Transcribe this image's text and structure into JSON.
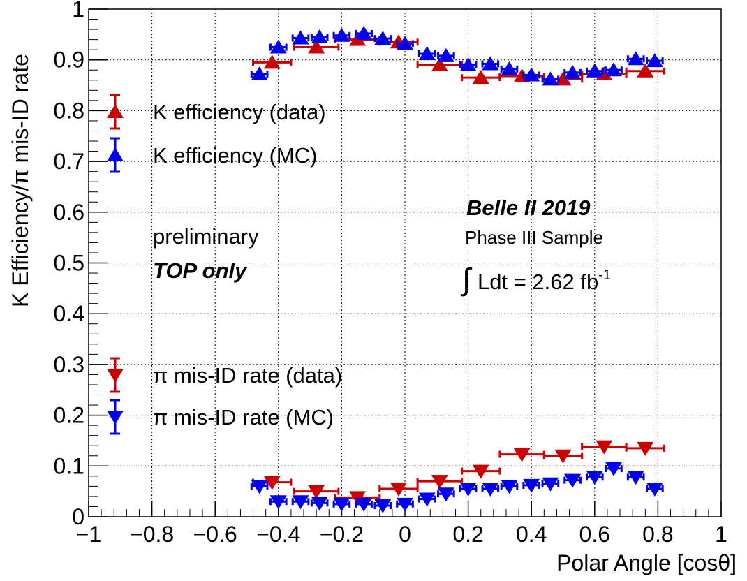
{
  "chart_data": {
    "type": "scatter",
    "xlabel": "Polar Angle [cosθ]",
    "ylabel": "K Efficiency/π mis-ID rate",
    "xlim": [
      -1,
      1
    ],
    "ylim": [
      0,
      1
    ],
    "x_ticks": [
      -1,
      -0.8,
      -0.6,
      -0.4,
      -0.2,
      0,
      0.2,
      0.4,
      0.6,
      0.8,
      1
    ],
    "x_tick_labels": [
      "−1",
      "−0.8",
      "−0.6",
      "−0.4",
      "−0.2",
      "0",
      "0.2",
      "0.4",
      "0.6",
      "0.8",
      "1"
    ],
    "y_ticks": [
      0,
      0.1,
      0.2,
      0.3,
      0.4,
      0.5,
      0.6,
      0.7,
      0.8,
      0.9,
      1
    ],
    "y_tick_labels": [
      "0",
      "0.1",
      "0.2",
      "0.3",
      "0.4",
      "0.5",
      "0.6",
      "0.7",
      "0.8",
      "0.9",
      "1"
    ],
    "grid": true,
    "legend_position": "left",
    "series": [
      {
        "name": "K efficiency (data)",
        "marker": "triangle-up",
        "color": "#cc0000",
        "x": [
          -0.42,
          -0.28,
          -0.15,
          -0.02,
          0.11,
          0.24,
          0.37,
          0.5,
          0.63,
          0.76
        ],
        "xerr": [
          0.06,
          0.07,
          0.07,
          0.06,
          0.07,
          0.06,
          0.07,
          0.06,
          0.07,
          0.06
        ],
        "y": [
          0.895,
          0.925,
          0.94,
          0.935,
          0.89,
          0.865,
          0.868,
          0.862,
          0.872,
          0.878
        ]
      },
      {
        "name": "K efficiency (MC)",
        "marker": "triangle-up",
        "color": "#0000ee",
        "x": [
          -0.46,
          -0.4,
          -0.33,
          -0.27,
          -0.2,
          -0.13,
          -0.07,
          0.0,
          0.07,
          0.13,
          0.2,
          0.27,
          0.33,
          0.4,
          0.46,
          0.53,
          0.6,
          0.66,
          0.73,
          0.79
        ],
        "xerr": [
          0.025,
          0.025,
          0.025,
          0.025,
          0.025,
          0.025,
          0.025,
          0.025,
          0.025,
          0.025,
          0.025,
          0.025,
          0.025,
          0.025,
          0.025,
          0.025,
          0.025,
          0.025,
          0.025,
          0.025
        ],
        "y": [
          0.872,
          0.925,
          0.943,
          0.945,
          0.948,
          0.952,
          0.942,
          0.932,
          0.912,
          0.908,
          0.89,
          0.892,
          0.882,
          0.87,
          0.862,
          0.875,
          0.878,
          0.88,
          0.902,
          0.898
        ]
      },
      {
        "name": "π mis-ID rate (data)",
        "marker": "triangle-down",
        "color": "#cc0000",
        "x": [
          -0.42,
          -0.28,
          -0.15,
          -0.02,
          0.11,
          0.24,
          0.37,
          0.5,
          0.63,
          0.76
        ],
        "xerr": [
          0.06,
          0.07,
          0.07,
          0.06,
          0.07,
          0.06,
          0.07,
          0.06,
          0.07,
          0.06
        ],
        "y": [
          0.068,
          0.05,
          0.038,
          0.055,
          0.07,
          0.09,
          0.123,
          0.12,
          0.138,
          0.135
        ]
      },
      {
        "name": "π mis-ID rate (MC)",
        "marker": "triangle-down",
        "color": "#0000ee",
        "x": [
          -0.46,
          -0.4,
          -0.33,
          -0.27,
          -0.2,
          -0.13,
          -0.07,
          0.0,
          0.07,
          0.13,
          0.2,
          0.27,
          0.33,
          0.4,
          0.46,
          0.53,
          0.6,
          0.66,
          0.73,
          0.79
        ],
        "xerr": [
          0.025,
          0.025,
          0.025,
          0.025,
          0.025,
          0.025,
          0.025,
          0.025,
          0.025,
          0.025,
          0.025,
          0.025,
          0.025,
          0.025,
          0.025,
          0.025,
          0.025,
          0.025,
          0.025,
          0.025
        ],
        "y": [
          0.06,
          0.03,
          0.03,
          0.027,
          0.025,
          0.025,
          0.022,
          0.025,
          0.035,
          0.045,
          0.055,
          0.055,
          0.06,
          0.062,
          0.065,
          0.072,
          0.078,
          0.095,
          0.078,
          0.055
        ]
      }
    ],
    "annotations": {
      "experiment": "Belle II 2019",
      "sample": "Phase III Sample",
      "lumi_prefix": "Ldt = 2.62 fb",
      "lumi_sup": "-1",
      "integral_sign": "∫",
      "status": "preliminary",
      "detector": "TOP only"
    }
  }
}
